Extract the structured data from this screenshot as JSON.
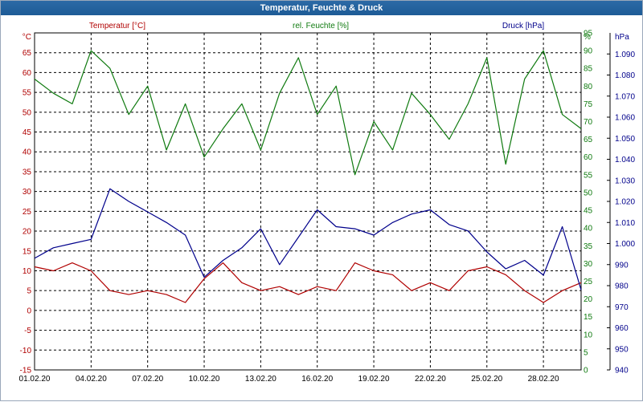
{
  "window": {
    "title": "Temperatur, Feuchte & Druck"
  },
  "colors": {
    "temperature": "#b00000",
    "humidity": "#0f7a0f",
    "pressure": "#00008b",
    "grid": "#000000",
    "titlebar": "#1d5b96"
  },
  "chart_data": {
    "type": "line",
    "title": "Temperatur, Feuchte & Druck",
    "grid": true,
    "x_date_range": [
      "2020-02-01",
      "2020-03-01"
    ],
    "x_ticks": [
      "01.02.20",
      "04.02.20",
      "07.02.20",
      "10.02.20",
      "13.02.20",
      "16.02.20",
      "19.02.20",
      "22.02.20",
      "25.02.20",
      "28.02.20"
    ],
    "axes": {
      "temperature": {
        "label": "Temperatur [°C]",
        "unit": "°C",
        "ylim": [
          -15,
          70
        ],
        "ticks": [
          "65",
          "60",
          "55",
          "50",
          "45",
          "40",
          "35",
          "30",
          "25",
          "20",
          "15",
          "10",
          "5",
          "0",
          "-5",
          "-10",
          "-15"
        ]
      },
      "humidity": {
        "label": "rel. Feuchte [%]",
        "unit": "%",
        "ylim": [
          0,
          95
        ],
        "ticks": [
          "95",
          "90",
          "85",
          "80",
          "75",
          "70",
          "65",
          "60",
          "55",
          "50",
          "45",
          "40",
          "35",
          "30",
          "25",
          "20",
          "15",
          "10",
          "5",
          "0"
        ]
      },
      "pressure": {
        "label": "Druck [hPa]",
        "unit": "hPa",
        "ylim": [
          940,
          1100
        ],
        "ticks": [
          "1.090",
          "1.080",
          "1.070",
          "1.060",
          "1.050",
          "1.040",
          "1.030",
          "1.020",
          "1.010",
          "1.000",
          "990",
          "980",
          "970",
          "960",
          "950",
          "940"
        ]
      }
    },
    "series": [
      {
        "name": "Temperatur [°C]",
        "axis": "temperature",
        "x": [
          "2020-02-01",
          "2020-02-02",
          "2020-02-03",
          "2020-02-04",
          "2020-02-05",
          "2020-02-06",
          "2020-02-07",
          "2020-02-08",
          "2020-02-09",
          "2020-02-10",
          "2020-02-11",
          "2020-02-12",
          "2020-02-13",
          "2020-02-14",
          "2020-02-15",
          "2020-02-16",
          "2020-02-17",
          "2020-02-18",
          "2020-02-19",
          "2020-02-20",
          "2020-02-21",
          "2020-02-22",
          "2020-02-23",
          "2020-02-24",
          "2020-02-25",
          "2020-02-26",
          "2020-02-27",
          "2020-02-28",
          "2020-02-29",
          "2020-03-01"
        ],
        "values": [
          11,
          10,
          12,
          10,
          5,
          4,
          5,
          4,
          2,
          8,
          12,
          7,
          5,
          6,
          4,
          6,
          5,
          12,
          10,
          9,
          5,
          7,
          5,
          10,
          11,
          9,
          5,
          2,
          5,
          7
        ]
      },
      {
        "name": "rel. Feuchte [%]",
        "axis": "humidity",
        "x": [
          "2020-02-01",
          "2020-02-02",
          "2020-02-03",
          "2020-02-04",
          "2020-02-05",
          "2020-02-06",
          "2020-02-07",
          "2020-02-08",
          "2020-02-09",
          "2020-02-10",
          "2020-02-11",
          "2020-02-12",
          "2020-02-13",
          "2020-02-14",
          "2020-02-15",
          "2020-02-16",
          "2020-02-17",
          "2020-02-18",
          "2020-02-19",
          "2020-02-20",
          "2020-02-21",
          "2020-02-22",
          "2020-02-23",
          "2020-02-24",
          "2020-02-25",
          "2020-02-26",
          "2020-02-27",
          "2020-02-28",
          "2020-02-29",
          "2020-03-01"
        ],
        "values": [
          82,
          78,
          75,
          90,
          85,
          72,
          80,
          62,
          75,
          60,
          68,
          75,
          62,
          78,
          88,
          72,
          80,
          55,
          70,
          62,
          78,
          72,
          65,
          75,
          88,
          58,
          82,
          90,
          72,
          68
        ]
      },
      {
        "name": "Druck [hPa]",
        "axis": "pressure",
        "x": [
          "2020-02-01",
          "2020-02-02",
          "2020-02-03",
          "2020-02-04",
          "2020-02-05",
          "2020-02-06",
          "2020-02-07",
          "2020-02-08",
          "2020-02-09",
          "2020-02-10",
          "2020-02-11",
          "2020-02-12",
          "2020-02-13",
          "2020-02-14",
          "2020-02-15",
          "2020-02-16",
          "2020-02-17",
          "2020-02-18",
          "2020-02-19",
          "2020-02-20",
          "2020-02-21",
          "2020-02-22",
          "2020-02-23",
          "2020-02-24",
          "2020-02-25",
          "2020-02-26",
          "2020-02-27",
          "2020-02-28",
          "2020-02-29",
          "2020-03-01"
        ],
        "values": [
          993,
          998,
          1000,
          1002,
          1026,
          1020,
          1015,
          1010,
          1004,
          984,
          992,
          998,
          1007,
          990,
          1003,
          1016,
          1008,
          1007,
          1004,
          1010,
          1014,
          1016,
          1009,
          1006,
          996,
          988,
          992,
          985,
          1008,
          978
        ]
      }
    ]
  }
}
